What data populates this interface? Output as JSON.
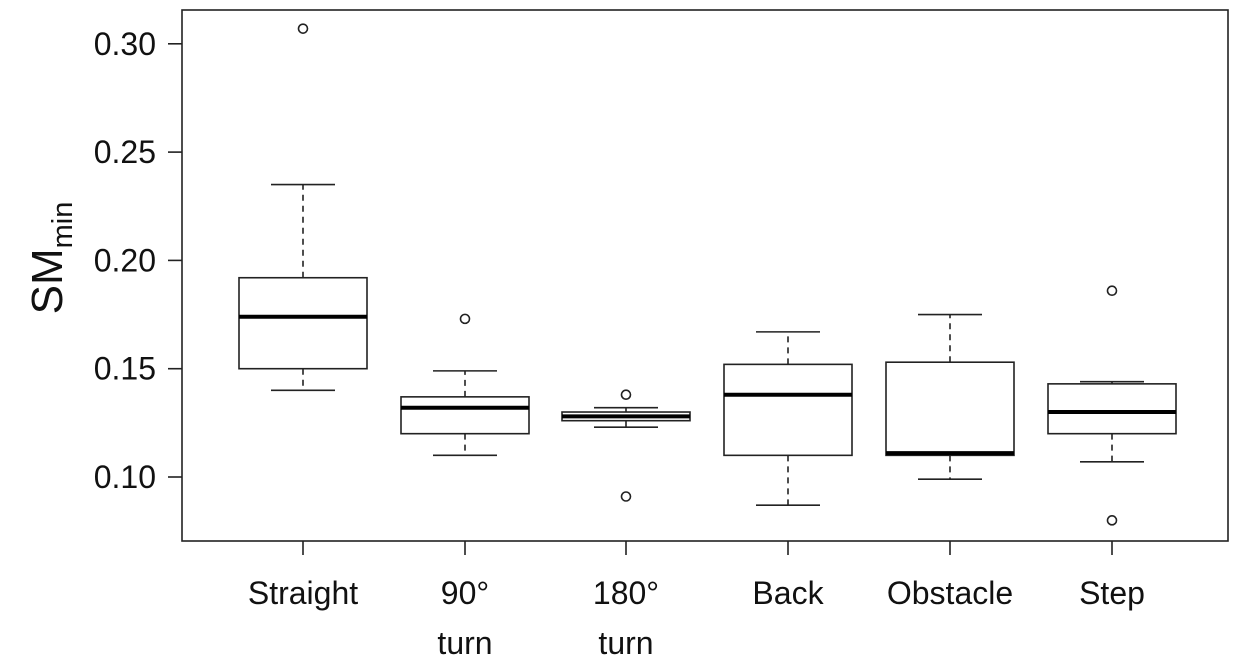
{
  "chart_data": {
    "type": "boxplot",
    "title": "",
    "xlabel": "",
    "ylabel": {
      "main": "SM",
      "subscript": "min"
    },
    "ylim": [
      0.075,
      0.31
    ],
    "yticks": [
      "0.10",
      "0.15",
      "0.20",
      "0.25",
      "0.30"
    ],
    "ytick_values": [
      0.1,
      0.15,
      0.2,
      0.25,
      0.3
    ],
    "grid": false,
    "categories": [
      {
        "lines": [
          "Straight"
        ]
      },
      {
        "lines": [
          "90°",
          "turn"
        ]
      },
      {
        "lines": [
          "180°",
          "turn"
        ]
      },
      {
        "lines": [
          "Back"
        ]
      },
      {
        "lines": [
          "Obstacle"
        ]
      },
      {
        "lines": [
          "Step"
        ]
      }
    ],
    "boxes": [
      {
        "whisker_low": 0.14,
        "q1": 0.15,
        "median": 0.174,
        "q3": 0.192,
        "whisker_high": 0.235,
        "outliers": [
          0.307
        ]
      },
      {
        "whisker_low": 0.11,
        "q1": 0.12,
        "median": 0.132,
        "q3": 0.137,
        "whisker_high": 0.149,
        "outliers": [
          0.173
        ]
      },
      {
        "whisker_low": 0.123,
        "q1": 0.126,
        "median": 0.128,
        "q3": 0.13,
        "whisker_high": 0.132,
        "outliers": [
          0.138,
          0.091
        ]
      },
      {
        "whisker_low": 0.087,
        "q1": 0.11,
        "median": 0.138,
        "q3": 0.152,
        "whisker_high": 0.167,
        "outliers": []
      },
      {
        "whisker_low": 0.099,
        "q1": 0.11,
        "median": 0.111,
        "q3": 0.153,
        "whisker_high": 0.175,
        "outliers": []
      },
      {
        "whisker_low": 0.107,
        "q1": 0.12,
        "median": 0.13,
        "q3": 0.143,
        "whisker_high": 0.144,
        "outliers": [
          0.186,
          0.08
        ]
      }
    ]
  }
}
